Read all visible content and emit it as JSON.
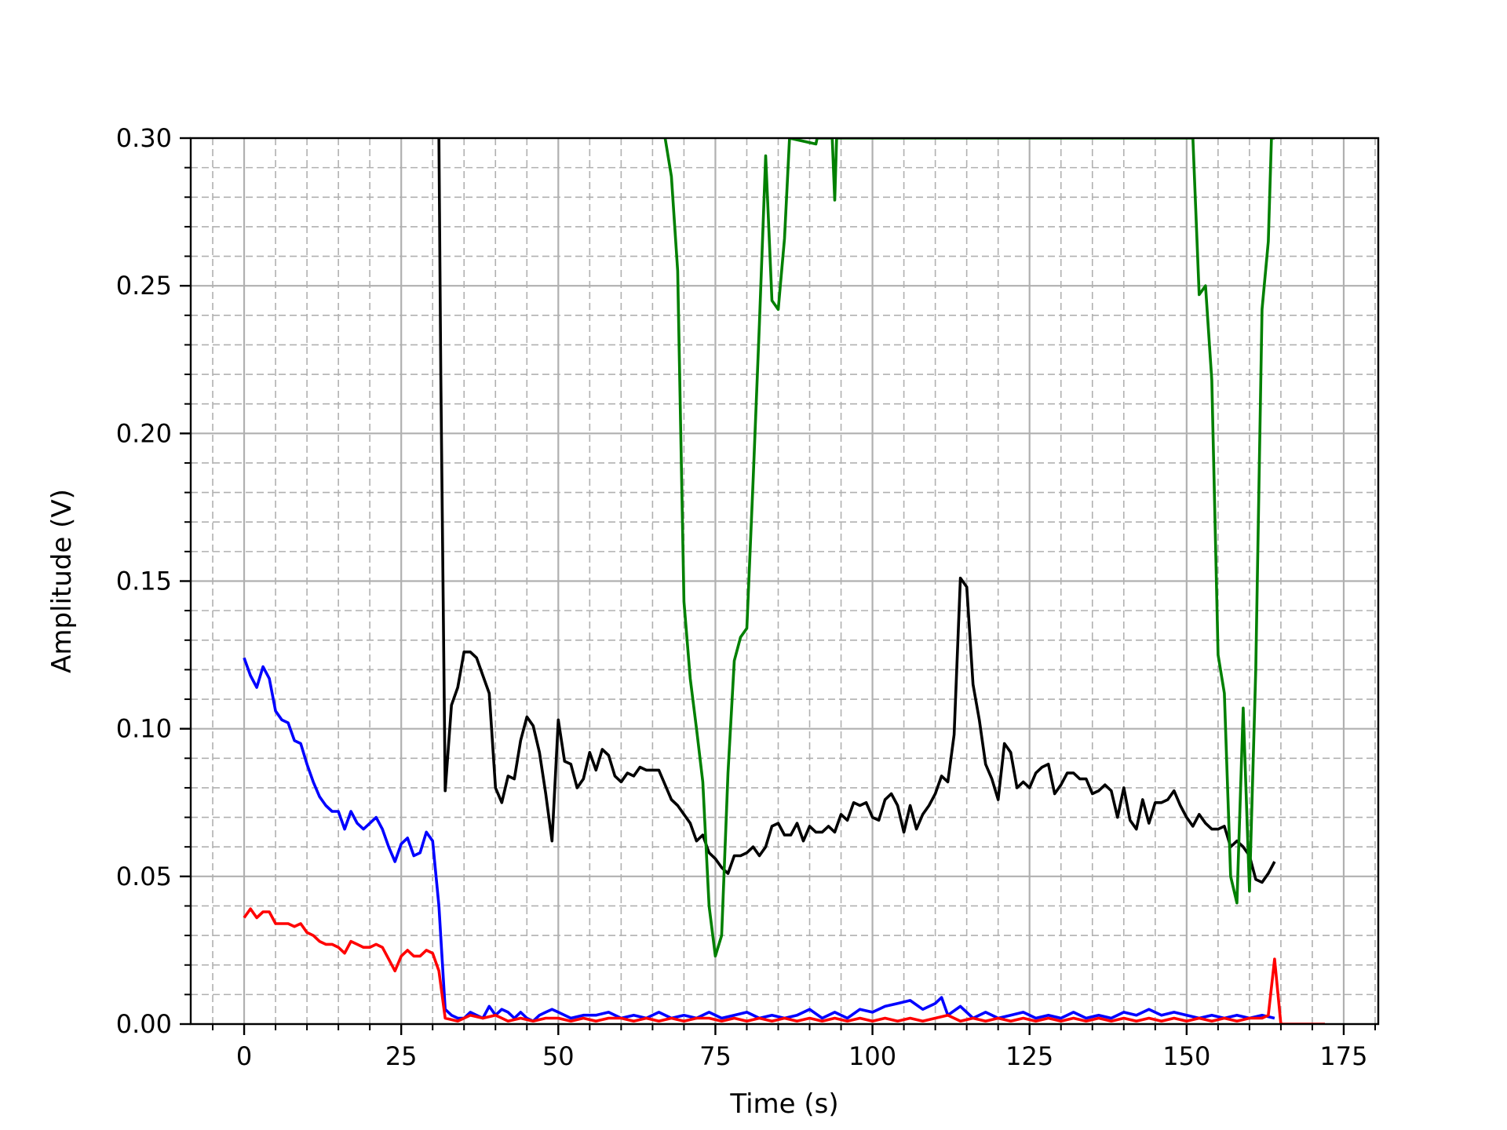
{
  "chart_data": {
    "type": "line",
    "title": "",
    "xlabel": "Time (s)",
    "ylabel": "Amplitude (V)",
    "xlim": [
      -8.5,
      180.5
    ],
    "ylim": [
      0.0,
      0.3
    ],
    "xticks": [
      0,
      25,
      50,
      75,
      100,
      125,
      150,
      175
    ],
    "xtick_labels": [
      "0",
      "25",
      "50",
      "75",
      "100",
      "125",
      "150",
      "175"
    ],
    "yticks": [
      0.0,
      0.05,
      0.1,
      0.15,
      0.2,
      0.25,
      0.3
    ],
    "ytick_labels": [
      "0.00",
      "0.05",
      "0.10",
      "0.15",
      "0.20",
      "0.25",
      "0.30"
    ],
    "x_minor_step": 5,
    "y_minor_step": 0.01,
    "grid": true,
    "legend": "none",
    "series": [
      {
        "color": "#0000ff",
        "x": [
          0,
          1,
          2,
          3,
          4,
          5,
          6,
          7,
          8,
          9,
          10,
          11,
          12,
          13,
          14,
          15,
          16,
          17,
          18,
          19,
          20,
          21,
          22,
          23,
          24,
          25,
          26,
          27,
          28,
          29,
          30,
          31,
          32,
          33,
          34,
          35,
          36,
          37,
          38,
          39,
          40,
          41,
          42,
          43,
          44,
          45,
          46,
          47,
          48,
          49,
          50,
          52,
          54,
          56,
          58,
          60,
          62,
          64,
          66,
          68,
          70,
          72,
          74,
          76,
          78,
          80,
          82,
          84,
          86,
          88,
          90,
          92,
          94,
          96,
          98,
          100,
          102,
          104,
          106,
          108,
          110,
          111,
          112,
          114,
          116,
          118,
          120,
          122,
          124,
          126,
          128,
          130,
          132,
          134,
          136,
          138,
          140,
          142,
          144,
          146,
          148,
          150,
          152,
          154,
          156,
          158,
          160,
          162,
          164
        ],
        "y": [
          0.124,
          0.118,
          0.114,
          0.121,
          0.117,
          0.106,
          0.103,
          0.102,
          0.096,
          0.095,
          0.088,
          0.082,
          0.077,
          0.074,
          0.072,
          0.072,
          0.066,
          0.072,
          0.068,
          0.066,
          0.068,
          0.07,
          0.066,
          0.06,
          0.055,
          0.061,
          0.063,
          0.057,
          0.058,
          0.065,
          0.062,
          0.04,
          0.005,
          0.003,
          0.002,
          0.002,
          0.004,
          0.003,
          0.002,
          0.006,
          0.003,
          0.005,
          0.004,
          0.002,
          0.004,
          0.002,
          0.001,
          0.003,
          0.004,
          0.005,
          0.004,
          0.002,
          0.003,
          0.003,
          0.004,
          0.002,
          0.003,
          0.002,
          0.004,
          0.002,
          0.003,
          0.002,
          0.004,
          0.002,
          0.003,
          0.004,
          0.002,
          0.003,
          0.002,
          0.003,
          0.005,
          0.002,
          0.004,
          0.002,
          0.005,
          0.004,
          0.006,
          0.007,
          0.008,
          0.005,
          0.007,
          0.009,
          0.003,
          0.006,
          0.002,
          0.004,
          0.002,
          0.003,
          0.004,
          0.002,
          0.003,
          0.002,
          0.004,
          0.002,
          0.003,
          0.002,
          0.004,
          0.003,
          0.005,
          0.003,
          0.004,
          0.003,
          0.002,
          0.003,
          0.002,
          0.003,
          0.002,
          0.003,
          0.002
        ],
        "name": ""
      },
      {
        "color": "#ff0000",
        "x": [
          0,
          1,
          2,
          3,
          4,
          5,
          6,
          7,
          8,
          9,
          10,
          11,
          12,
          13,
          14,
          15,
          16,
          17,
          18,
          19,
          20,
          21,
          22,
          23,
          24,
          25,
          26,
          27,
          28,
          29,
          30,
          31,
          32,
          34,
          36,
          38,
          40,
          42,
          44,
          46,
          48,
          50,
          52,
          54,
          56,
          58,
          60,
          62,
          64,
          66,
          68,
          70,
          72,
          74,
          76,
          78,
          80,
          82,
          84,
          86,
          88,
          90,
          92,
          94,
          96,
          98,
          100,
          102,
          104,
          106,
          108,
          110,
          112,
          114,
          116,
          118,
          120,
          122,
          124,
          126,
          128,
          130,
          132,
          134,
          136,
          138,
          140,
          142,
          144,
          146,
          148,
          150,
          152,
          154,
          156,
          158,
          160,
          162,
          163,
          164,
          165,
          166,
          168,
          170,
          172
        ],
        "y": [
          0.036,
          0.039,
          0.036,
          0.038,
          0.038,
          0.034,
          0.034,
          0.034,
          0.033,
          0.034,
          0.031,
          0.03,
          0.028,
          0.027,
          0.027,
          0.026,
          0.024,
          0.028,
          0.027,
          0.026,
          0.026,
          0.027,
          0.026,
          0.022,
          0.018,
          0.023,
          0.025,
          0.023,
          0.023,
          0.025,
          0.024,
          0.018,
          0.002,
          0.001,
          0.003,
          0.002,
          0.003,
          0.001,
          0.002,
          0.001,
          0.002,
          0.002,
          0.001,
          0.002,
          0.001,
          0.002,
          0.002,
          0.001,
          0.002,
          0.001,
          0.002,
          0.001,
          0.002,
          0.002,
          0.001,
          0.002,
          0.001,
          0.002,
          0.001,
          0.002,
          0.001,
          0.002,
          0.001,
          0.002,
          0.001,
          0.002,
          0.001,
          0.002,
          0.001,
          0.002,
          0.001,
          0.002,
          0.003,
          0.001,
          0.002,
          0.001,
          0.002,
          0.001,
          0.002,
          0.001,
          0.002,
          0.001,
          0.002,
          0.001,
          0.002,
          0.001,
          0.002,
          0.001,
          0.002,
          0.001,
          0.002,
          0.001,
          0.002,
          0.001,
          0.002,
          0.001,
          0.002,
          0.002,
          0.003,
          0.022,
          0.0,
          0.0,
          0.0,
          0.0,
          0.0
        ],
        "name": ""
      },
      {
        "color": "#000000",
        "x": [
          31.0,
          31.3,
          32,
          33,
          34,
          35,
          36,
          37,
          38,
          39,
          40,
          41,
          42,
          43,
          44,
          45,
          46,
          47,
          48,
          49,
          50,
          51,
          52,
          53,
          54,
          55,
          56,
          57,
          58,
          59,
          60,
          61,
          62,
          63,
          64,
          65,
          66,
          67,
          68,
          69,
          70,
          71,
          72,
          73,
          74,
          75,
          76,
          77,
          78,
          79,
          80,
          81,
          82,
          83,
          84,
          85,
          86,
          87,
          88,
          89,
          90,
          91,
          92,
          93,
          94,
          95,
          96,
          97,
          98,
          99,
          100,
          101,
          102,
          103,
          104,
          105,
          106,
          107,
          108,
          109,
          110,
          111,
          112,
          113,
          114,
          115,
          116,
          117,
          118,
          119,
          120,
          121,
          122,
          123,
          124,
          125,
          126,
          127,
          128,
          129,
          130,
          131,
          132,
          133,
          134,
          135,
          136,
          137,
          138,
          139,
          140,
          141,
          142,
          143,
          144,
          145,
          146,
          147,
          148,
          149,
          150,
          151,
          152,
          153,
          154,
          155,
          156,
          157,
          158,
          159,
          160,
          161,
          162,
          163,
          164
        ],
        "y": [
          0.3,
          0.22,
          0.079,
          0.108,
          0.114,
          0.126,
          0.126,
          0.124,
          0.118,
          0.112,
          0.08,
          0.075,
          0.084,
          0.083,
          0.096,
          0.104,
          0.101,
          0.092,
          0.078,
          0.062,
          0.103,
          0.089,
          0.088,
          0.08,
          0.083,
          0.092,
          0.086,
          0.093,
          0.091,
          0.084,
          0.082,
          0.085,
          0.084,
          0.087,
          0.086,
          0.086,
          0.086,
          0.081,
          0.076,
          0.074,
          0.071,
          0.068,
          0.062,
          0.064,
          0.058,
          0.056,
          0.053,
          0.051,
          0.057,
          0.057,
          0.058,
          0.06,
          0.057,
          0.06,
          0.067,
          0.068,
          0.064,
          0.064,
          0.068,
          0.062,
          0.067,
          0.065,
          0.065,
          0.067,
          0.065,
          0.071,
          0.069,
          0.075,
          0.074,
          0.075,
          0.07,
          0.069,
          0.076,
          0.078,
          0.074,
          0.065,
          0.074,
          0.066,
          0.071,
          0.074,
          0.078,
          0.084,
          0.082,
          0.098,
          0.151,
          0.148,
          0.115,
          0.103,
          0.088,
          0.083,
          0.076,
          0.095,
          0.092,
          0.08,
          0.082,
          0.08,
          0.085,
          0.087,
          0.088,
          0.078,
          0.081,
          0.085,
          0.085,
          0.083,
          0.083,
          0.078,
          0.079,
          0.081,
          0.079,
          0.07,
          0.08,
          0.069,
          0.066,
          0.076,
          0.068,
          0.075,
          0.075,
          0.076,
          0.079,
          0.074,
          0.07,
          0.067,
          0.071,
          0.068,
          0.066,
          0.066,
          0.067,
          0.06,
          0.062,
          0.06,
          0.057,
          0.049,
          0.048,
          0.051,
          0.055
        ],
        "name": ""
      },
      {
        "color": "#008000",
        "x": [
          67,
          68,
          69,
          70,
          71,
          72,
          73,
          74,
          75,
          76,
          77,
          78,
          79,
          80,
          81,
          82,
          83,
          84,
          85,
          86,
          86.8,
          91,
          91.2,
          93.6,
          94,
          94.3,
          151,
          152,
          153,
          154,
          155,
          156,
          157,
          158,
          159,
          160,
          161,
          162,
          163,
          163.5,
          164
        ],
        "y": [
          0.3,
          0.287,
          0.255,
          0.143,
          0.117,
          0.1,
          0.082,
          0.04,
          0.023,
          0.03,
          0.085,
          0.123,
          0.131,
          0.134,
          0.184,
          0.237,
          0.294,
          0.245,
          0.242,
          0.266,
          0.3,
          0.298,
          0.3,
          0.3,
          0.279,
          0.3,
          0.3,
          0.247,
          0.25,
          0.218,
          0.125,
          0.112,
          0.05,
          0.041,
          0.107,
          0.045,
          0.12,
          0.242,
          0.265,
          0.3,
          0.3
        ],
        "name": ""
      }
    ]
  }
}
